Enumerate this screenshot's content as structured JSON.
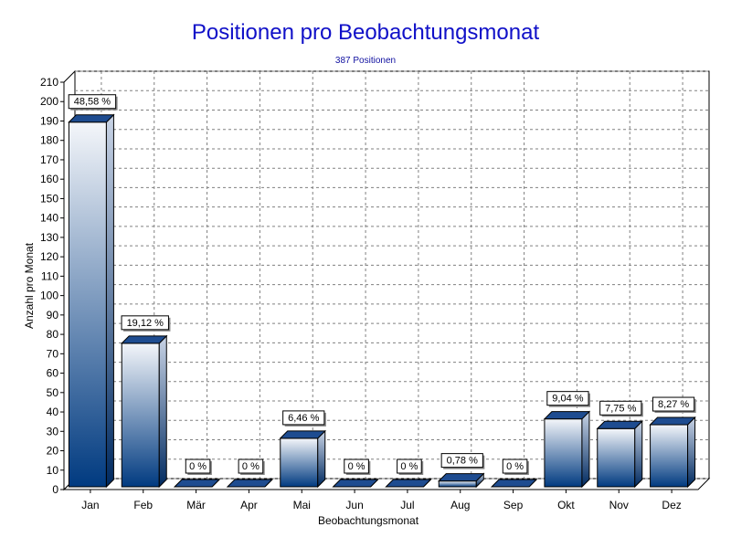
{
  "chart_data": {
    "type": "bar",
    "title": "Positionen pro Beobachtungsmonat",
    "subtitle": "387 Positionen",
    "xlabel": "Beobachtungsmonat",
    "ylabel": "Anzahl pro Monat",
    "categories": [
      "Jan",
      "Feb",
      "Mär",
      "Apr",
      "Mai",
      "Jun",
      "Jul",
      "Aug",
      "Sep",
      "Okt",
      "Nov",
      "Dez"
    ],
    "values": [
      188,
      74,
      0,
      0,
      25,
      0,
      0,
      3,
      0,
      35,
      30,
      32
    ],
    "labels": [
      "48,58 %",
      "19,12 %",
      "0 %",
      "0 %",
      "6,46 %",
      "0 %",
      "0 %",
      "0,78 %",
      "0 %",
      "9,04 %",
      "7,75 %",
      "8,27 %"
    ],
    "ylim": [
      0,
      210
    ],
    "yticks": [
      0,
      10,
      20,
      30,
      40,
      50,
      60,
      70,
      80,
      90,
      100,
      110,
      120,
      130,
      140,
      150,
      160,
      170,
      180,
      190,
      200,
      210
    ],
    "grid": true,
    "bar_color_top": "#f4f6fa",
    "bar_color_bottom": "#003a80"
  }
}
